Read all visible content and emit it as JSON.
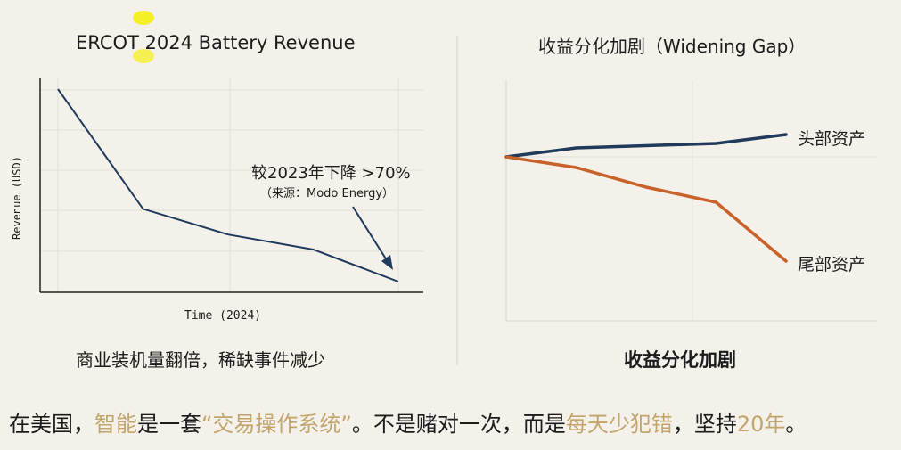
{
  "chart_data": [
    {
      "type": "line",
      "title": "ERCOT 2024 Battery Revenue",
      "xlabel": "Time (2024)",
      "ylabel": "Revenue (USD)",
      "x": [
        0,
        1,
        2,
        3,
        4
      ],
      "values": [
        95,
        39,
        27,
        20,
        5
      ],
      "ylim": [
        0,
        100
      ],
      "grid": true,
      "annotation": {
        "text": "较2023年下降 >70%",
        "source": "（来源：Modo Energy）"
      },
      "caption": "商业装机量翻倍，稀缺事件减少"
    },
    {
      "type": "line",
      "title": "收益分化加剧（Widening Gap）",
      "xlabel": "",
      "ylabel": "",
      "grid": true,
      "series": [
        {
          "name": "头部资产",
          "x": [
            0,
            1,
            3,
            4
          ],
          "values": [
            184,
            194,
            199,
            209
          ],
          "color": "#1f3a5a"
        },
        {
          "name": "尾部资产",
          "x": [
            0,
            1,
            2,
            3,
            4
          ],
          "values": [
            184,
            172,
            150,
            133,
            67
          ],
          "color": "#c8612a"
        }
      ],
      "ylim": [
        0,
        270
      ],
      "caption": "收益分化加剧"
    }
  ],
  "footer": {
    "parts": [
      {
        "text": "在美国，",
        "hl": false
      },
      {
        "text": "智能",
        "hl": true
      },
      {
        "text": "是一套",
        "hl": false
      },
      {
        "text": "“交易操作系统”",
        "hl": true
      },
      {
        "text": "。不是赌对一次，而是",
        "hl": false
      },
      {
        "text": "每天少犯错",
        "hl": true
      },
      {
        "text": "，坚持",
        "hl": false
      },
      {
        "text": "20年",
        "hl": true
      },
      {
        "text": "。",
        "hl": false
      }
    ],
    "highlight_color": "#c2a46c"
  }
}
